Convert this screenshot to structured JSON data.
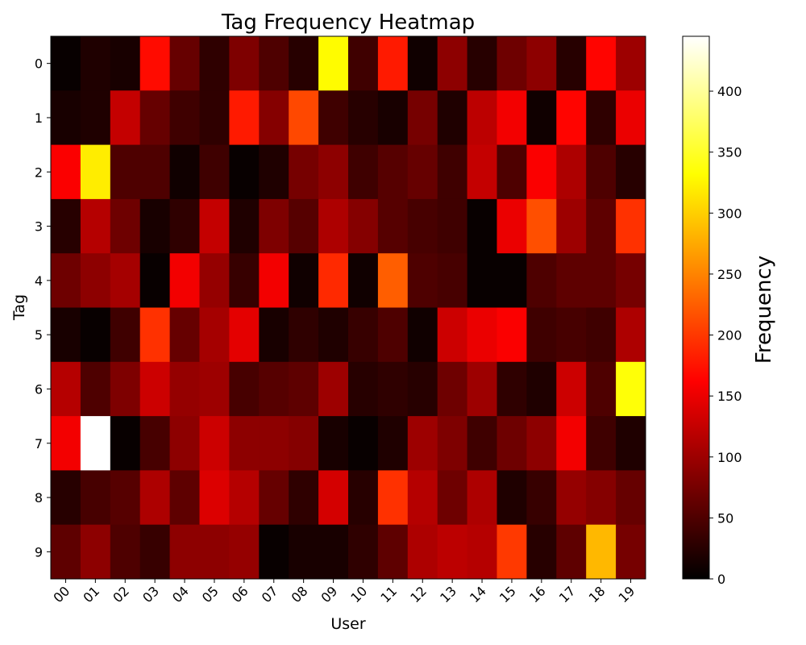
{
  "chart_data": {
    "type": "heatmap",
    "title": "Tag Frequency Heatmap",
    "xlabel": "User",
    "ylabel": "Tag",
    "colorbar_label": "Frequency",
    "colormap": "hot",
    "vmin": 0,
    "vmax": 445,
    "colorbar_ticks": [
      0,
      50,
      100,
      150,
      200,
      250,
      300,
      350,
      400
    ],
    "x_categories": [
      "00",
      "01",
      "02",
      "03",
      "04",
      "05",
      "06",
      "07",
      "08",
      "09",
      "10",
      "11",
      "12",
      "13",
      "14",
      "15",
      "16",
      "17",
      "18",
      "19"
    ],
    "y_categories": [
      "0",
      "1",
      "2",
      "3",
      "4",
      "5",
      "6",
      "7",
      "8",
      "9"
    ],
    "values": [
      [
        5,
        20,
        15,
        170,
        65,
        30,
        80,
        50,
        25,
        330,
        40,
        180,
        10,
        90,
        25,
        70,
        90,
        25,
        165,
        100
      ],
      [
        15,
        20,
        125,
        65,
        40,
        30,
        180,
        85,
        210,
        40,
        25,
        15,
        75,
        20,
        120,
        155,
        10,
        165,
        30,
        150
      ],
      [
        160,
        320,
        50,
        50,
        10,
        40,
        5,
        20,
        75,
        90,
        40,
        55,
        65,
        40,
        125,
        50,
        160,
        110,
        50,
        25
      ],
      [
        25,
        115,
        70,
        15,
        30,
        125,
        20,
        80,
        55,
        110,
        85,
        55,
        45,
        40,
        5,
        150,
        215,
        100,
        60,
        195
      ],
      [
        70,
        90,
        105,
        5,
        155,
        95,
        35,
        155,
        10,
        190,
        10,
        225,
        50,
        45,
        5,
        5,
        50,
        60,
        60,
        75
      ],
      [
        15,
        5,
        40,
        195,
        65,
        105,
        145,
        15,
        30,
        20,
        35,
        50,
        10,
        130,
        150,
        160,
        40,
        45,
        40,
        110
      ],
      [
        115,
        50,
        80,
        130,
        95,
        100,
        45,
        55,
        60,
        100,
        25,
        30,
        25,
        70,
        100,
        30,
        20,
        130,
        50,
        335
      ],
      [
        155,
        445,
        5,
        45,
        90,
        130,
        90,
        90,
        85,
        15,
        5,
        20,
        100,
        80,
        40,
        70,
        90,
        155,
        40,
        20
      ],
      [
        25,
        45,
        55,
        110,
        60,
        140,
        115,
        65,
        30,
        135,
        25,
        195,
        115,
        70,
        110,
        20,
        35,
        95,
        85,
        65
      ],
      [
        60,
        90,
        50,
        35,
        90,
        90,
        95,
        5,
        15,
        15,
        30,
        60,
        110,
        120,
        115,
        200,
        25,
        60,
        285,
        75
      ]
    ]
  }
}
